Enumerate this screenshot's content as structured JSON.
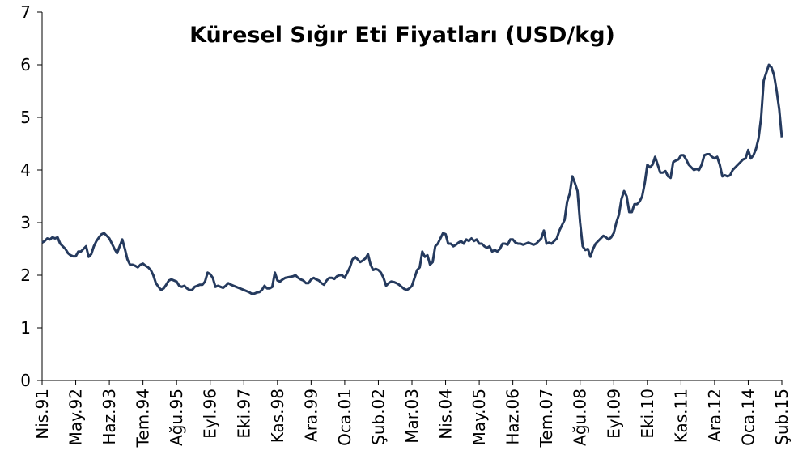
{
  "chart_data": {
    "type": "line",
    "title": "Küresel Sığır Eti Fiyatları (USD/kg)",
    "categories": [
      "Nis.91",
      null,
      null,
      null,
      null,
      null,
      null,
      null,
      null,
      null,
      null,
      null,
      null,
      "May.92",
      null,
      null,
      null,
      null,
      null,
      null,
      null,
      null,
      null,
      null,
      null,
      null,
      "Haz.93",
      null,
      null,
      null,
      null,
      null,
      null,
      null,
      null,
      null,
      null,
      null,
      null,
      "Tem.94",
      null,
      null,
      null,
      null,
      null,
      null,
      null,
      null,
      null,
      null,
      null,
      null,
      "Ağu.95",
      null,
      null,
      null,
      null,
      null,
      null,
      null,
      null,
      null,
      null,
      null,
      null,
      "Eyl.96",
      null,
      null,
      null,
      null,
      null,
      null,
      null,
      null,
      null,
      null,
      null,
      null,
      "Eki.97",
      null,
      null,
      null,
      null,
      null,
      null,
      null,
      null,
      null,
      null,
      null,
      null,
      "Kas.98",
      null,
      null,
      null,
      null,
      null,
      null,
      null,
      null,
      null,
      null,
      null,
      null,
      "Ara.99",
      null,
      null,
      null,
      null,
      null,
      null,
      null,
      null,
      null,
      null,
      null,
      null,
      "Oca.01",
      null,
      null,
      null,
      null,
      null,
      null,
      null,
      null,
      null,
      null,
      null,
      null,
      "Şub.02",
      null,
      null,
      null,
      null,
      null,
      null,
      null,
      null,
      null,
      null,
      null,
      null,
      "Mar.03",
      null,
      null,
      null,
      null,
      null,
      null,
      null,
      null,
      null,
      null,
      null,
      null,
      "Nis.04",
      null,
      null,
      null,
      null,
      null,
      null,
      null,
      null,
      null,
      null,
      null,
      null,
      "May.05",
      null,
      null,
      null,
      null,
      null,
      null,
      null,
      null,
      null,
      null,
      null,
      null,
      "Haz.06",
      null,
      null,
      null,
      null,
      null,
      null,
      null,
      null,
      null,
      null,
      null,
      null,
      "Tem.07",
      null,
      null,
      null,
      null,
      null,
      null,
      null,
      null,
      null,
      null,
      null,
      null,
      "Ağu.08",
      null,
      null,
      null,
      null,
      null,
      null,
      null,
      null,
      null,
      null,
      null,
      null,
      "Eyl.09",
      null,
      null,
      null,
      null,
      null,
      null,
      null,
      null,
      null,
      null,
      null,
      null,
      "Eki.10",
      null,
      null,
      null,
      null,
      null,
      null,
      null,
      null,
      null,
      null,
      null,
      null,
      "Kas.11",
      null,
      null,
      null,
      null,
      null,
      null,
      null,
      null,
      null,
      null,
      null,
      null,
      "Ara.12",
      null,
      null,
      null,
      null,
      null,
      null,
      null,
      null,
      null,
      null,
      null,
      null,
      "Oca.14",
      null,
      null,
      null,
      null,
      null,
      null,
      null,
      null,
      null,
      null,
      null,
      null,
      "Şub.15"
    ],
    "values": [
      2.62,
      2.65,
      2.7,
      2.68,
      2.72,
      2.7,
      2.72,
      2.6,
      2.55,
      2.5,
      2.42,
      2.38,
      2.36,
      2.36,
      2.45,
      2.45,
      2.5,
      2.55,
      2.35,
      2.4,
      2.55,
      2.65,
      2.72,
      2.78,
      2.8,
      2.75,
      2.7,
      2.6,
      2.5,
      2.42,
      2.55,
      2.68,
      2.5,
      2.3,
      2.2,
      2.2,
      2.18,
      2.15,
      2.2,
      2.22,
      2.18,
      2.15,
      2.1,
      2.0,
      1.85,
      1.78,
      1.72,
      1.75,
      1.82,
      1.9,
      1.92,
      1.9,
      1.88,
      1.8,
      1.78,
      1.8,
      1.75,
      1.72,
      1.72,
      1.78,
      1.8,
      1.82,
      1.82,
      1.88,
      2.05,
      2.02,
      1.95,
      1.78,
      1.8,
      1.78,
      1.76,
      1.8,
      1.85,
      1.82,
      1.8,
      1.78,
      1.76,
      1.74,
      1.72,
      1.7,
      1.68,
      1.65,
      1.65,
      1.67,
      1.68,
      1.72,
      1.8,
      1.75,
      1.75,
      1.78,
      2.05,
      1.9,
      1.88,
      1.92,
      1.95,
      1.96,
      1.97,
      1.98,
      2.0,
      1.95,
      1.92,
      1.9,
      1.85,
      1.85,
      1.92,
      1.95,
      1.92,
      1.9,
      1.85,
      1.82,
      1.9,
      1.95,
      1.95,
      1.93,
      1.98,
      2.0,
      2.0,
      1.95,
      2.05,
      2.15,
      2.3,
      2.35,
      2.3,
      2.25,
      2.28,
      2.32,
      2.4,
      2.2,
      2.1,
      2.12,
      2.1,
      2.05,
      1.95,
      1.8,
      1.85,
      1.88,
      1.87,
      1.85,
      1.82,
      1.78,
      1.74,
      1.72,
      1.75,
      1.8,
      1.95,
      2.1,
      2.15,
      2.45,
      2.35,
      2.38,
      2.2,
      2.25,
      2.55,
      2.6,
      2.7,
      2.8,
      2.78,
      2.6,
      2.6,
      2.55,
      2.58,
      2.62,
      2.65,
      2.6,
      2.68,
      2.65,
      2.7,
      2.65,
      2.68,
      2.6,
      2.6,
      2.55,
      2.52,
      2.55,
      2.45,
      2.48,
      2.45,
      2.5,
      2.6,
      2.6,
      2.58,
      2.68,
      2.68,
      2.62,
      2.6,
      2.6,
      2.58,
      2.6,
      2.62,
      2.6,
      2.58,
      2.6,
      2.65,
      2.7,
      2.85,
      2.6,
      2.62,
      2.6,
      2.65,
      2.7,
      2.85,
      2.95,
      3.05,
      3.4,
      3.55,
      3.88,
      3.75,
      3.6,
      3.0,
      2.55,
      2.48,
      2.5,
      2.35,
      2.5,
      2.6,
      2.65,
      2.7,
      2.75,
      2.72,
      2.68,
      2.72,
      2.8,
      3.0,
      3.15,
      3.45,
      3.6,
      3.5,
      3.2,
      3.2,
      3.35,
      3.35,
      3.4,
      3.5,
      3.75,
      4.1,
      4.05,
      4.1,
      4.25,
      4.1,
      3.95,
      3.95,
      3.98,
      3.88,
      3.85,
      4.15,
      4.18,
      4.2,
      4.28,
      4.28,
      4.2,
      4.1,
      4.05,
      4.0,
      4.02,
      4.0,
      4.1,
      4.28,
      4.3,
      4.3,
      4.25,
      4.22,
      4.25,
      4.1,
      3.88,
      3.9,
      3.88,
      3.9,
      4.0,
      4.05,
      4.1,
      4.15,
      4.2,
      4.22,
      4.38,
      4.22,
      4.28,
      4.4,
      4.6,
      5.0,
      5.7,
      5.85,
      6.0,
      5.95,
      5.8,
      5.5,
      5.15,
      4.62
    ],
    "color": "#253a5e",
    "ylim": [
      0,
      7
    ],
    "yticks": [
      0,
      1,
      2,
      3,
      4,
      5,
      6,
      7
    ]
  }
}
